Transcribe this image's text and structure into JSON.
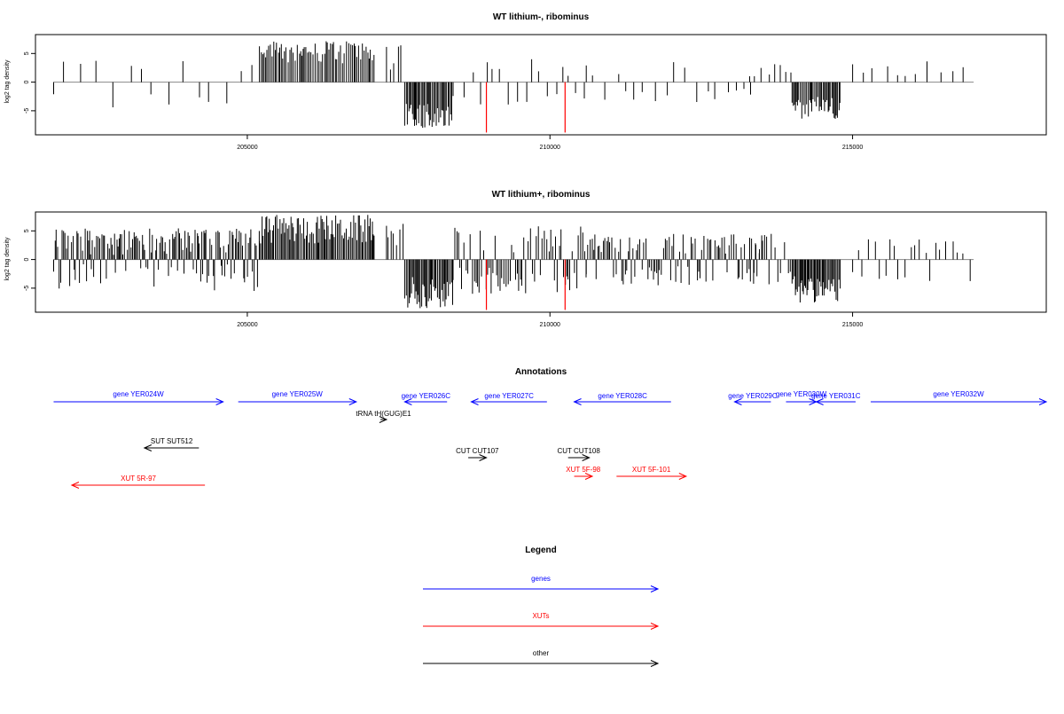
{
  "chart_data": [
    {
      "type": "bar",
      "title": "WT lithium-, ribominus",
      "ylabel": "log2 tag density",
      "xlim": [
        201500,
        218200
      ],
      "ylim": [
        -9.2,
        8.3
      ],
      "x_ticks": [
        205000,
        210000,
        215000
      ],
      "y_ticks": [
        -5,
        0,
        5
      ],
      "grid": false,
      "baseline": {
        "from": 201800,
        "to": 217000
      },
      "regions": [
        {
          "from": 201800,
          "to": 205200,
          "step": 230,
          "min": 0.8,
          "max": 4.5,
          "sign": 1,
          "mixed": true
        },
        {
          "from": 205200,
          "to": 207100,
          "step": 28,
          "min": 3.0,
          "max": 7.2,
          "sign": 1,
          "mixed": false
        },
        {
          "from": 207300,
          "to": 207600,
          "step": 60,
          "min": 2.0,
          "max": 6.5,
          "sign": 1,
          "mixed": false
        },
        {
          "from": 207600,
          "to": 208400,
          "step": 22,
          "min": 3.0,
          "max": 8.0,
          "sign": -1,
          "mixed": false
        },
        {
          "from": 208400,
          "to": 210600,
          "step": 130,
          "min": 0.8,
          "max": 4.0,
          "sign": -1,
          "mixed": true
        },
        {
          "from": 210600,
          "to": 213500,
          "step": 170,
          "min": 0.8,
          "max": 3.5,
          "sign": 1,
          "mixed": true
        },
        {
          "from": 213300,
          "to": 214000,
          "step": 100,
          "min": 1.0,
          "max": 3.5,
          "sign": 1,
          "mixed": true
        },
        {
          "from": 214000,
          "to": 214800,
          "step": 22,
          "min": 2.0,
          "max": 6.5,
          "sign": -1,
          "mixed": false
        },
        {
          "from": 215000,
          "to": 217000,
          "step": 190,
          "min": 1.0,
          "max": 3.8,
          "sign": 1,
          "mixed": false
        }
      ],
      "highlights": [
        {
          "x": 208950,
          "y": -8.8,
          "color": "#ff0000"
        },
        {
          "x": 210250,
          "y": -8.8,
          "color": "#ff0000"
        }
      ]
    },
    {
      "type": "bar",
      "title": "WT lithium+, ribominus",
      "ylabel": "log2 tag density",
      "xlim": [
        201500,
        218200
      ],
      "ylim": [
        -9.2,
        8.3
      ],
      "x_ticks": [
        205000,
        210000,
        215000
      ],
      "y_ticks": [
        -5,
        0,
        5
      ],
      "grid": false,
      "baseline": {
        "from": 201800,
        "to": 217000
      },
      "regions": [
        {
          "from": 201800,
          "to": 205200,
          "step": 22,
          "min": 0.8,
          "max": 5.5,
          "sign": 1,
          "mixed": true
        },
        {
          "from": 205200,
          "to": 207100,
          "step": 22,
          "min": 2.5,
          "max": 7.8,
          "sign": 1,
          "mixed": false
        },
        {
          "from": 207300,
          "to": 207600,
          "step": 40,
          "min": 2.0,
          "max": 7.0,
          "sign": 1,
          "mixed": false
        },
        {
          "from": 207600,
          "to": 208400,
          "step": 20,
          "min": 3.0,
          "max": 8.5,
          "sign": -1,
          "mixed": false
        },
        {
          "from": 208400,
          "to": 210600,
          "step": 30,
          "min": 1.0,
          "max": 6.0,
          "sign": -1,
          "mixed": true
        },
        {
          "from": 210600,
          "to": 213500,
          "step": 30,
          "min": 1.0,
          "max": 4.5,
          "sign": 1,
          "mixed": true
        },
        {
          "from": 213300,
          "to": 214000,
          "step": 50,
          "min": 1.0,
          "max": 4.5,
          "sign": 1,
          "mixed": true
        },
        {
          "from": 214000,
          "to": 214800,
          "step": 18,
          "min": 2.5,
          "max": 7.5,
          "sign": -1,
          "mixed": false
        },
        {
          "from": 215000,
          "to": 217000,
          "step": 90,
          "min": 0.8,
          "max": 3.8,
          "sign": 1,
          "mixed": true
        }
      ],
      "highlights": [
        {
          "x": 208950,
          "y": -8.8,
          "color": "#ff0000"
        },
        {
          "x": 210250,
          "y": -8.8,
          "color": "#ff0000"
        }
      ]
    }
  ],
  "annotations": {
    "title": "Annotations",
    "colors": {
      "genes": "#0000ff",
      "XUTs": "#ff0000",
      "other": "#000000"
    },
    "features": [
      {
        "label": "gene YER024W",
        "start": 201800,
        "end": 204600,
        "strand": "+",
        "kind": "genes",
        "row": 0,
        "label_dy": -6
      },
      {
        "label": "gene YER025W",
        "start": 204850,
        "end": 206800,
        "strand": "+",
        "kind": "genes",
        "row": 0,
        "label_dy": -6
      },
      {
        "label": "gene YER026C",
        "start": 207600,
        "end": 208300,
        "strand": "-",
        "kind": "genes",
        "row": 0,
        "label_dy": -4
      },
      {
        "label": "gene YER027C",
        "start": 208700,
        "end": 209950,
        "strand": "-",
        "kind": "genes",
        "row": 0,
        "label_dy": -4
      },
      {
        "label": "gene YER028C",
        "start": 210400,
        "end": 212000,
        "strand": "-",
        "kind": "genes",
        "row": 0,
        "label_dy": -4
      },
      {
        "label": "gene YER029C",
        "start": 213050,
        "end": 213650,
        "strand": "-",
        "kind": "genes",
        "row": 0,
        "label_dy": -4
      },
      {
        "label": "gene YER030W",
        "start": 213900,
        "end": 214400,
        "strand": "+",
        "kind": "genes",
        "row": 0,
        "label_dy": -6
      },
      {
        "label": "gene YER031C",
        "start": 214400,
        "end": 215050,
        "strand": "-",
        "kind": "genes",
        "row": 0,
        "label_dy": -4
      },
      {
        "label": "gene YER032W",
        "start": 215300,
        "end": 218200,
        "strand": "+",
        "kind": "genes",
        "row": 0,
        "label_dy": -6
      },
      {
        "label": "tRNA tH(GUG)E1",
        "start": 207200,
        "end": 207300,
        "strand": "+",
        "kind": "other",
        "row": 1,
        "label_dy": -4
      },
      {
        "label": "SUT SUT512",
        "start": 203300,
        "end": 204200,
        "strand": "-",
        "kind": "other",
        "row": 2,
        "label_dy": -5
      },
      {
        "label": "CUT CUT107",
        "start": 208650,
        "end": 208950,
        "strand": "+",
        "kind": "other",
        "row": 3,
        "label_dy": -5
      },
      {
        "label": "CUT CUT108",
        "start": 210300,
        "end": 210650,
        "strand": "+",
        "kind": "other",
        "row": 3,
        "label_dy": -5
      },
      {
        "label": "XUT 5F-98",
        "start": 210400,
        "end": 210700,
        "strand": "+",
        "kind": "XUTs",
        "row": 4,
        "label_dy": -5
      },
      {
        "label": "XUT 5F-101",
        "start": 211100,
        "end": 212250,
        "strand": "+",
        "kind": "XUTs",
        "row": 4,
        "label_dy": -5
      },
      {
        "label": "XUT 5R-97",
        "start": 202100,
        "end": 204300,
        "strand": "-",
        "kind": "XUTs",
        "row": 5,
        "label_dy": -5
      }
    ]
  },
  "legend": {
    "title": "Legend",
    "items": [
      {
        "label": "genes",
        "color": "#0000ff"
      },
      {
        "label": "XUTs",
        "color": "#ff0000"
      },
      {
        "label": "other",
        "color": "#000000"
      }
    ]
  }
}
